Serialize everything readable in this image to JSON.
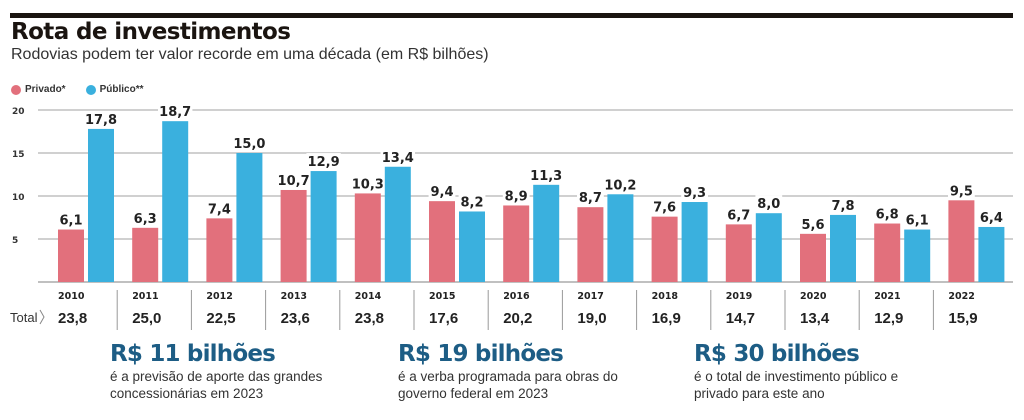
{
  "header": {
    "title": "Rota de investimentos",
    "subtitle": "Rodovias podem ter valor recorde em uma década (em R$ bilhões)"
  },
  "legend": [
    {
      "label": "Privado*",
      "color": "#e2707c"
    },
    {
      "label": "Público**",
      "color": "#3ab0de"
    }
  ],
  "chart_data": {
    "type": "bar",
    "title": "Rota de investimentos",
    "subtitle": "Rodovias podem ter valor recorde em uma década (em R$ bilhões)",
    "xlabel": "",
    "ylabel": "R$ bilhões",
    "ylim": [
      0,
      20
    ],
    "yticks": [
      5,
      10,
      15,
      20
    ],
    "grid": true,
    "legend_position": "top-left",
    "categories": [
      "2010",
      "2011",
      "2012",
      "2013",
      "2014",
      "2015",
      "2016",
      "2017",
      "2018",
      "2019",
      "2020",
      "2021",
      "2022"
    ],
    "series": [
      {
        "name": "Privado*",
        "color": "#e2707c",
        "values": [
          6.1,
          6.3,
          7.4,
          10.7,
          10.3,
          9.4,
          8.9,
          8.7,
          7.6,
          6.7,
          5.6,
          6.8,
          9.5
        ],
        "labels": [
          "6,1",
          "6,3",
          "7,4",
          "10,7",
          "10,3",
          "9,4",
          "8,9",
          "8,7",
          "7,6",
          "6,7",
          "5,6",
          "6,8",
          "9,5"
        ]
      },
      {
        "name": "Público**",
        "color": "#3ab0de",
        "values": [
          17.8,
          18.7,
          15.0,
          12.9,
          13.4,
          8.2,
          11.3,
          10.2,
          9.3,
          8.0,
          7.8,
          6.1,
          6.4
        ],
        "labels": [
          "17,8",
          "18,7",
          "15,0",
          "12,9",
          "13,4",
          "8,2",
          "11,3",
          "10,2",
          "9,3",
          "8,0",
          "7,8",
          "6,1",
          "6,4"
        ]
      }
    ],
    "totals_label": "Total",
    "totals": [
      "23,8",
      "25,0",
      "22,5",
      "23,6",
      "23,8",
      "17,6",
      "20,2",
      "19,0",
      "16,9",
      "14,7",
      "13,4",
      "12,9",
      "15,9"
    ]
  },
  "callouts": [
    {
      "value": "R$ 11 bilhões",
      "text": "é a previsão de aporte das grandes concessionárias em 2023"
    },
    {
      "value": "R$ 19 bilhões",
      "text": "é a verba programada para obras do governo federal em 2023"
    },
    {
      "value": "R$ 30 bilhões",
      "text": "é o total de investimento público e privado para este ano"
    }
  ]
}
